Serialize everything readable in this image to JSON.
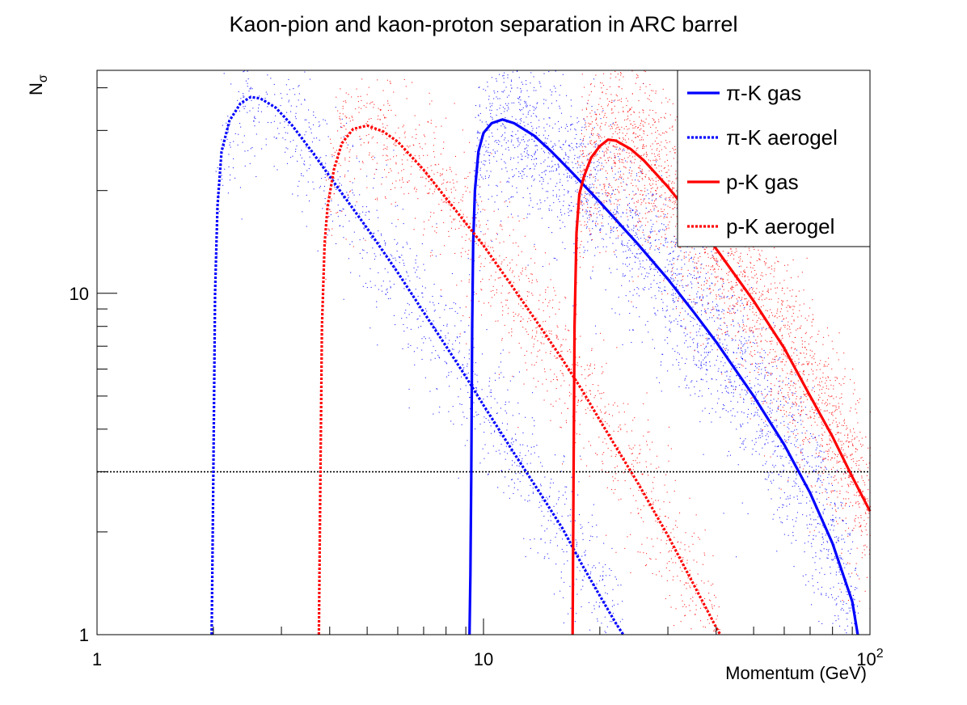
{
  "chart_data": {
    "type": "line",
    "title": "Kaon-pion and kaon-proton separation in ARC barrel",
    "xlabel": "Momentum (GeV)",
    "ylabel_main": "N",
    "ylabel_sub": "σ",
    "xscale": "log",
    "yscale": "log",
    "xlim": [
      1,
      100
    ],
    "ylim": [
      1,
      45
    ],
    "x_ticks": [
      {
        "value": 1,
        "label": "1",
        "sup": ""
      },
      {
        "value": 10,
        "label": "10",
        "sup": ""
      },
      {
        "value": 100,
        "label": "10",
        "sup": "2"
      }
    ],
    "y_ticks": [
      {
        "value": 1,
        "label": "1"
      },
      {
        "value": 10,
        "label": "10"
      }
    ],
    "threshold": {
      "value": 3,
      "color": "#000000",
      "style": "dotted"
    },
    "legend_position": "top-right",
    "series": [
      {
        "name": "π-K gas",
        "color": "#0000ff",
        "style": "solid",
        "points": [
          [
            9.2,
            1.0
          ],
          [
            9.25,
            1.5
          ],
          [
            9.3,
            3.0
          ],
          [
            9.35,
            8.0
          ],
          [
            9.4,
            14.0
          ],
          [
            9.5,
            20.0
          ],
          [
            9.7,
            26.0
          ],
          [
            10.0,
            29.5
          ],
          [
            10.5,
            31.5
          ],
          [
            11.2,
            32.3
          ],
          [
            12.0,
            31.5
          ],
          [
            13.5,
            29.0
          ],
          [
            15.0,
            26.0
          ],
          [
            17.0,
            22.5
          ],
          [
            20.0,
            18.5
          ],
          [
            25.0,
            14.0
          ],
          [
            30.0,
            11.0
          ],
          [
            35.0,
            8.8
          ],
          [
            40.0,
            7.2
          ],
          [
            50.0,
            5.0
          ],
          [
            60.0,
            3.6
          ],
          [
            70.0,
            2.6
          ],
          [
            80.0,
            1.85
          ],
          [
            90.0,
            1.25
          ],
          [
            93.0,
            1.0
          ]
        ],
        "scatter": {
          "x_min": 9.3,
          "x_max": 100,
          "peak_x": 11.5,
          "spread": 0.13,
          "count": 2600
        }
      },
      {
        "name": "π-K aerogel",
        "color": "#0000ff",
        "style": "dotted",
        "points": [
          [
            1.98,
            1.0
          ],
          [
            2.0,
            3.0
          ],
          [
            2.02,
            10.0
          ],
          [
            2.05,
            18.0
          ],
          [
            2.1,
            26.0
          ],
          [
            2.2,
            32.0
          ],
          [
            2.35,
            36.0
          ],
          [
            2.5,
            37.6
          ],
          [
            2.65,
            37.2
          ],
          [
            2.9,
            35.0
          ],
          [
            3.2,
            31.0
          ],
          [
            3.6,
            26.0
          ],
          [
            4.0,
            22.0
          ],
          [
            5.0,
            15.5
          ],
          [
            6.0,
            11.5
          ],
          [
            7.0,
            8.8
          ],
          [
            8.0,
            7.0
          ],
          [
            9.0,
            5.7
          ],
          [
            10.0,
            4.7
          ],
          [
            12.0,
            3.4
          ],
          [
            14.0,
            2.6
          ],
          [
            16.0,
            2.05
          ],
          [
            18.0,
            1.6
          ],
          [
            20.0,
            1.3
          ],
          [
            22.0,
            1.08
          ],
          [
            23.0,
            1.0
          ]
        ],
        "scatter": {
          "x_min": 2.02,
          "x_max": 26,
          "peak_x": 2.6,
          "spread": 0.11,
          "count": 1100
        }
      },
      {
        "name": "p-K gas",
        "color": "#ff0000",
        "style": "solid",
        "points": [
          [
            17.0,
            1.0
          ],
          [
            17.1,
            3.0
          ],
          [
            17.2,
            8.0
          ],
          [
            17.4,
            15.0
          ],
          [
            17.7,
            19.5
          ],
          [
            18.2,
            22.0
          ],
          [
            19.0,
            25.0
          ],
          [
            20.0,
            27.0
          ],
          [
            21.0,
            28.2
          ],
          [
            22.0,
            28.0
          ],
          [
            24.0,
            26.5
          ],
          [
            26.0,
            24.5
          ],
          [
            30.0,
            20.5
          ],
          [
            35.0,
            16.5
          ],
          [
            40.0,
            13.5
          ],
          [
            50.0,
            9.5
          ],
          [
            60.0,
            6.9
          ],
          [
            70.0,
            5.0
          ],
          [
            80.0,
            3.8
          ],
          [
            90.0,
            2.9
          ],
          [
            100.0,
            2.3
          ]
        ],
        "scatter": {
          "x_min": 17.3,
          "x_max": 100,
          "peak_x": 22,
          "spread": 0.13,
          "count": 2600
        }
      },
      {
        "name": "p-K aerogel",
        "color": "#ff0000",
        "style": "dotted",
        "points": [
          [
            3.75,
            1.0
          ],
          [
            3.78,
            2.5
          ],
          [
            3.82,
            8.0
          ],
          [
            3.88,
            14.0
          ],
          [
            3.95,
            18.0
          ],
          [
            4.1,
            23.0
          ],
          [
            4.3,
            27.5
          ],
          [
            4.6,
            30.3
          ],
          [
            5.0,
            31.0
          ],
          [
            5.5,
            29.8
          ],
          [
            6.0,
            27.8
          ],
          [
            7.0,
            23.0
          ],
          [
            8.0,
            19.0
          ],
          [
            10.0,
            13.8
          ],
          [
            12.0,
            10.3
          ],
          [
            14.0,
            8.0
          ],
          [
            16.0,
            6.4
          ],
          [
            18.0,
            5.2
          ],
          [
            20.0,
            4.25
          ],
          [
            22.0,
            3.55
          ],
          [
            25.0,
            2.8
          ],
          [
            30.0,
            1.95
          ],
          [
            35.0,
            1.4
          ],
          [
            40.0,
            1.05
          ],
          [
            41.0,
            1.0
          ]
        ],
        "scatter": {
          "x_min": 3.9,
          "x_max": 45,
          "peak_x": 5.0,
          "spread": 0.11,
          "count": 1300
        }
      }
    ]
  }
}
